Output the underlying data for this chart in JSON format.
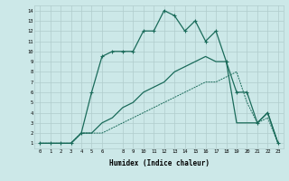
{
  "xlabel": "Humidex (Indice chaleur)",
  "bg_color": "#cce8e8",
  "grid_color": "#b0cccc",
  "line_color": "#1a6b5a",
  "xlim": [
    -0.5,
    23.5
  ],
  "ylim": [
    0.5,
    14.5
  ],
  "xticks": [
    0,
    1,
    2,
    3,
    4,
    5,
    6,
    8,
    9,
    10,
    11,
    12,
    13,
    14,
    15,
    16,
    17,
    18,
    19,
    20,
    21,
    22,
    23
  ],
  "yticks": [
    1,
    2,
    3,
    4,
    5,
    6,
    7,
    8,
    9,
    10,
    11,
    12,
    13,
    14
  ],
  "line_marked_x": [
    0,
    1,
    2,
    3,
    4,
    5,
    6,
    7,
    8,
    9,
    10,
    11,
    12,
    13,
    14,
    15,
    16,
    17,
    18,
    19,
    20,
    21,
    22,
    23
  ],
  "line_marked_y": [
    1,
    1,
    1,
    1,
    2,
    6,
    9.5,
    10,
    10,
    10,
    12,
    12,
    14,
    13.5,
    12,
    13,
    11,
    12,
    9,
    6,
    6,
    3,
    4,
    1
  ],
  "line_solid_x": [
    0,
    1,
    2,
    3,
    4,
    5,
    6,
    7,
    8,
    9,
    10,
    11,
    12,
    13,
    14,
    15,
    16,
    17,
    18,
    19,
    20,
    21,
    22,
    23
  ],
  "line_solid_y": [
    1,
    1,
    1,
    1,
    2,
    2,
    3,
    3.5,
    4.5,
    5,
    6,
    6.5,
    7,
    8,
    8.5,
    9,
    9.5,
    9,
    9,
    3,
    3,
    3,
    4,
    1
  ],
  "line_diag_x": [
    0,
    1,
    2,
    3,
    4,
    5,
    6,
    7,
    8,
    9,
    10,
    11,
    12,
    13,
    14,
    15,
    16,
    17,
    18,
    19,
    20,
    21,
    22,
    23
  ],
  "line_diag_y": [
    1,
    1,
    1,
    1,
    2,
    2,
    2,
    2.5,
    3,
    3.5,
    4,
    4.5,
    5,
    5.5,
    6,
    6.5,
    7,
    7,
    7.5,
    8,
    5,
    3,
    3.5,
    1
  ]
}
